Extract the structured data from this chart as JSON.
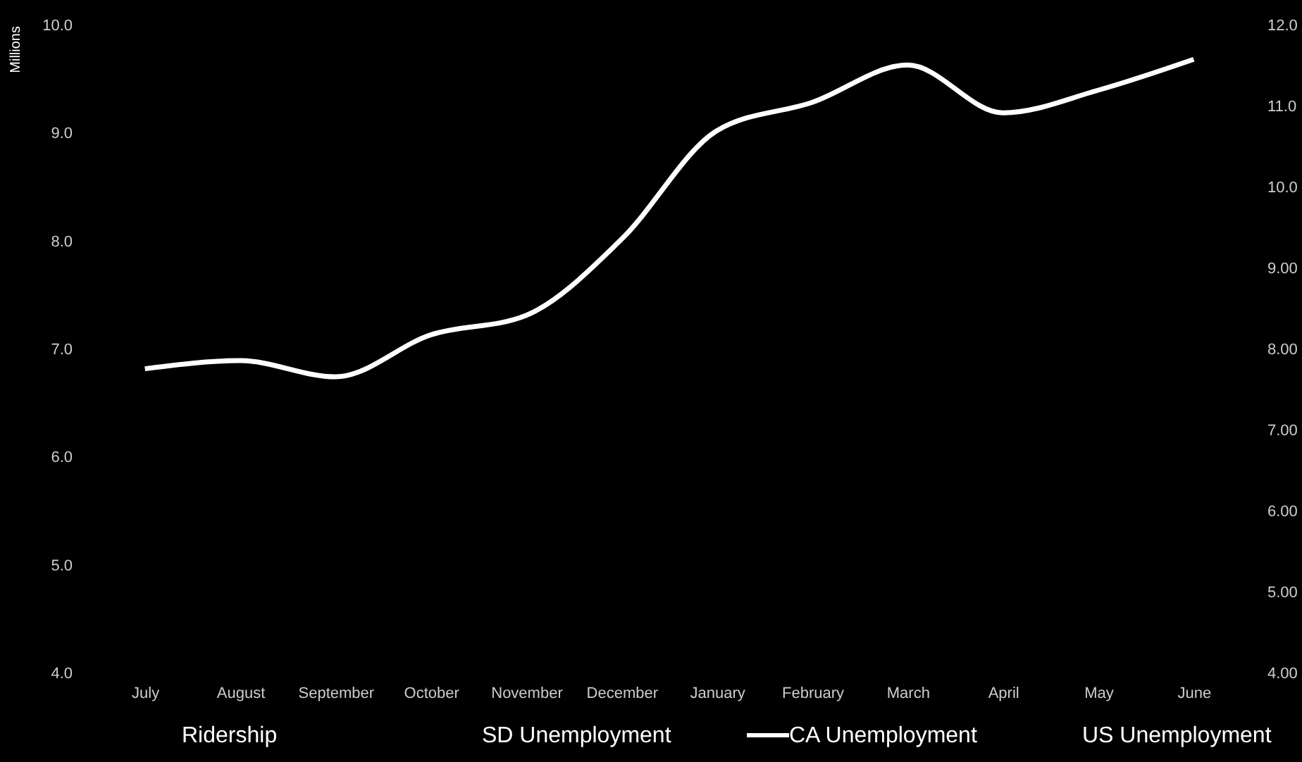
{
  "chart_data": {
    "type": "line",
    "ylabel": "Millions",
    "categories": [
      "July",
      "August",
      "September",
      "October",
      "November",
      "December",
      "January",
      "February",
      "March",
      "April",
      "May",
      "June"
    ],
    "ylim": [
      4,
      10
    ],
    "yticks": [
      {
        "value": 4,
        "label": "4.0"
      },
      {
        "value": 5,
        "label": "5.0"
      },
      {
        "value": 6,
        "label": "6.0"
      },
      {
        "value": 7,
        "label": "7.0"
      },
      {
        "value": 8,
        "label": "8.0"
      },
      {
        "value": 9,
        "label": "9.0"
      },
      {
        "value": 10,
        "label": "10.0"
      }
    ],
    "y2lim": [
      4,
      12
    ],
    "y2ticks": [
      {
        "value": 4,
        "label": "4.00"
      },
      {
        "value": 5,
        "label": "5.00"
      },
      {
        "value": 6,
        "label": "6.00"
      },
      {
        "value": 7,
        "label": "7.00"
      },
      {
        "value": 8,
        "label": "8.00"
      },
      {
        "value": 9,
        "label": "9.00"
      },
      {
        "value": 10,
        "label": "10.0"
      },
      {
        "value": 11,
        "label": "11.0"
      },
      {
        "value": 12,
        "label": "12.0"
      }
    ],
    "series": [
      {
        "name": "CA Unemployment",
        "color": "#ffffff",
        "axis": "y2",
        "values": [
          7.76,
          7.86,
          7.66,
          8.18,
          8.42,
          9.36,
          10.7,
          11.05,
          11.51,
          10.92,
          11.2,
          11.58
        ]
      }
    ],
    "annotations": [
      "Ridership",
      "SD Unemployment",
      "US Unemployment"
    ],
    "legend": "bottom",
    "grid": false,
    "marker": "none",
    "line_style": "solid"
  }
}
